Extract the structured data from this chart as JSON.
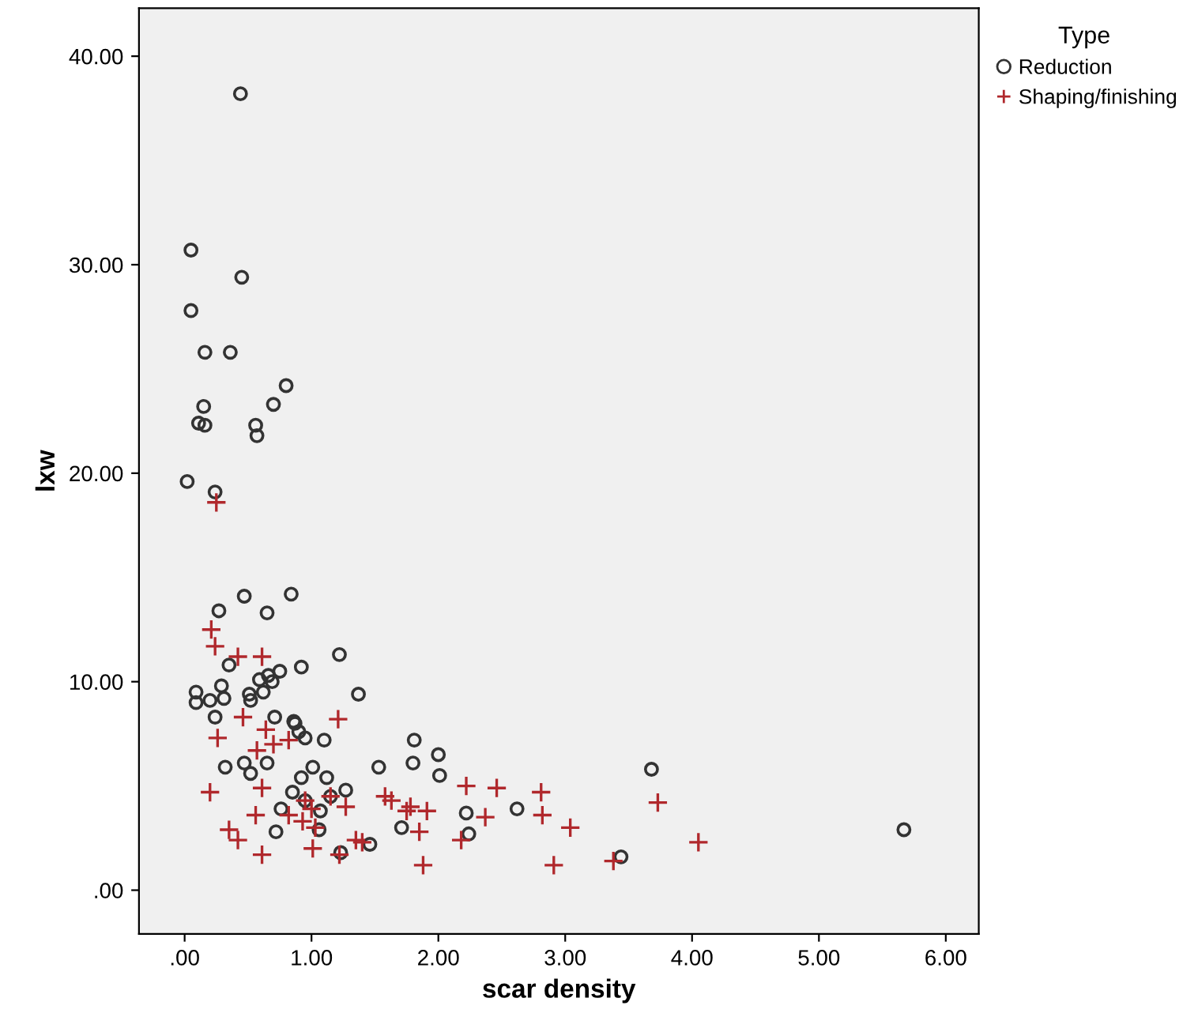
{
  "chart_data": {
    "type": "scatter",
    "xlabel": "scar density",
    "ylabel": "lxw",
    "legend_title": "Type",
    "legend": "right",
    "grid": false,
    "xlim": [
      -0.36,
      6.26
    ],
    "ylim": [
      -2.1,
      42.3
    ],
    "xticks": [
      {
        "value": 0,
        "label": ".00"
      },
      {
        "value": 1,
        "label": "1.00"
      },
      {
        "value": 2,
        "label": "2.00"
      },
      {
        "value": 3,
        "label": "3.00"
      },
      {
        "value": 4,
        "label": "4.00"
      },
      {
        "value": 5,
        "label": "5.00"
      },
      {
        "value": 6,
        "label": "6.00"
      }
    ],
    "yticks": [
      {
        "value": 0,
        "label": ".00"
      },
      {
        "value": 10,
        "label": "10.00"
      },
      {
        "value": 20,
        "label": "20.00"
      },
      {
        "value": 30,
        "label": "30.00"
      },
      {
        "value": 40,
        "label": "40.00"
      }
    ],
    "series": [
      {
        "name": "Reduction",
        "color": "#333333",
        "marker": "circle",
        "x": [
          0.44,
          0.05,
          0.45,
          0.05,
          0.16,
          0.36,
          0.8,
          0.7,
          0.15,
          0.11,
          0.16,
          0.56,
          0.57,
          0.02,
          0.24,
          0.47,
          0.84,
          0.27,
          0.65,
          1.22,
          0.92,
          0.35,
          0.75,
          0.66,
          0.69,
          0.59,
          0.29,
          0.62,
          0.51,
          1.37,
          0.09,
          0.09,
          0.2,
          0.31,
          0.52,
          0.24,
          0.71,
          0.86,
          0.87,
          0.9,
          0.95,
          1.1,
          1.81,
          1.8,
          1.53,
          0.32,
          0.47,
          0.52,
          0.65,
          1.01,
          0.92,
          1.12,
          1.27,
          0.85,
          0.95,
          1.15,
          0.76,
          1.07,
          1.71,
          0.72,
          1.06,
          1.46,
          1.23,
          2.0,
          2.01,
          2.22,
          2.24,
          2.62,
          3.68,
          3.44,
          5.67
        ],
        "values": [
          38.2,
          30.7,
          29.4,
          27.8,
          25.8,
          25.8,
          24.2,
          23.3,
          23.2,
          22.4,
          22.3,
          22.3,
          21.8,
          19.6,
          19.1,
          14.1,
          14.2,
          13.4,
          13.3,
          11.3,
          10.7,
          10.8,
          10.5,
          10.3,
          10.0,
          10.1,
          9.8,
          9.5,
          9.4,
          9.4,
          9.5,
          9.0,
          9.1,
          9.2,
          9.1,
          8.3,
          8.3,
          8.1,
          8.0,
          7.6,
          7.3,
          7.2,
          7.2,
          6.1,
          5.9,
          5.9,
          6.1,
          5.6,
          6.1,
          5.9,
          5.4,
          5.4,
          4.8,
          4.7,
          4.3,
          4.5,
          3.9,
          3.8,
          3.0,
          2.8,
          2.9,
          2.2,
          1.8,
          6.5,
          5.5,
          3.7,
          2.7,
          3.9,
          5.8,
          1.6,
          2.9
        ]
      },
      {
        "name": "Shaping/finishing",
        "color": "#b0282c",
        "marker": "cross",
        "x": [
          0.25,
          0.21,
          0.24,
          0.42,
          0.61,
          0.46,
          1.21,
          0.26,
          0.64,
          0.57,
          0.7,
          0.82,
          0.2,
          0.61,
          0.56,
          0.95,
          1.0,
          1.15,
          1.27,
          0.82,
          0.93,
          1.03,
          0.35,
          0.42,
          0.61,
          1.01,
          1.35,
          1.4,
          1.22,
          1.58,
          1.63,
          1.78,
          1.75,
          1.85,
          1.88,
          1.91,
          2.22,
          2.46,
          2.81,
          2.37,
          2.82,
          3.04,
          2.18,
          2.91,
          3.38,
          3.73,
          4.05
        ],
        "values": [
          18.6,
          12.5,
          11.7,
          11.2,
          11.2,
          8.3,
          8.2,
          7.3,
          7.7,
          6.7,
          7.0,
          7.2,
          4.7,
          4.9,
          3.6,
          4.3,
          3.9,
          4.5,
          4.0,
          3.6,
          3.3,
          3.0,
          2.9,
          2.4,
          1.7,
          2.0,
          2.4,
          2.3,
          1.7,
          4.5,
          4.3,
          4.0,
          3.8,
          2.8,
          1.2,
          3.8,
          5.0,
          4.9,
          4.7,
          3.5,
          3.6,
          3.0,
          2.4,
          1.2,
          1.4,
          4.2,
          2.3
        ]
      }
    ]
  }
}
